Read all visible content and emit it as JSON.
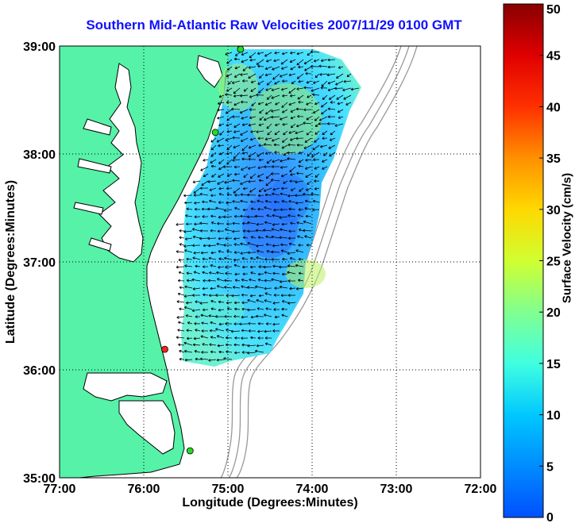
{
  "title": "Southern Mid-Atlantic Raw Velocities 2007/11/29 0100 GMT",
  "xlabel": "Longitude (Degrees:Minutes)",
  "ylabel": "Latitude (Degrees:Minutes)",
  "colorbar": {
    "label": "Surface Velocity (cm/s)",
    "ticks": [
      "0",
      "5",
      "10",
      "15",
      "20",
      "25",
      "30",
      "35",
      "40",
      "45",
      "50"
    ]
  },
  "map": {
    "lon_ticks": [
      "77:00",
      "76:00",
      "75:00",
      "74:00",
      "73:00",
      "72:00"
    ],
    "lat_ticks": [
      "39:00",
      "38:00",
      "37:00",
      "36:00",
      "35:00"
    ],
    "lon_range": [
      -77,
      -72
    ],
    "lat_range": [
      35,
      39
    ],
    "colors": {
      "land": "#55f2a8",
      "ocean": "#ffffff",
      "coast": "#000000",
      "isobath": "#999999",
      "velocity_low": "#2070ff",
      "velocity_mid": "#40e6ff",
      "velocity_high": "#a8f060"
    },
    "sites": [
      {
        "lon": -74.85,
        "lat": 38.97,
        "color": "#22dd22"
      },
      {
        "lon": -75.15,
        "lat": 38.2,
        "color": "#22dd22"
      },
      {
        "lon": -75.75,
        "lat": 36.19,
        "color": "#ff2020"
      },
      {
        "lon": -75.45,
        "lat": 35.25,
        "color": "#22dd22"
      }
    ]
  }
}
